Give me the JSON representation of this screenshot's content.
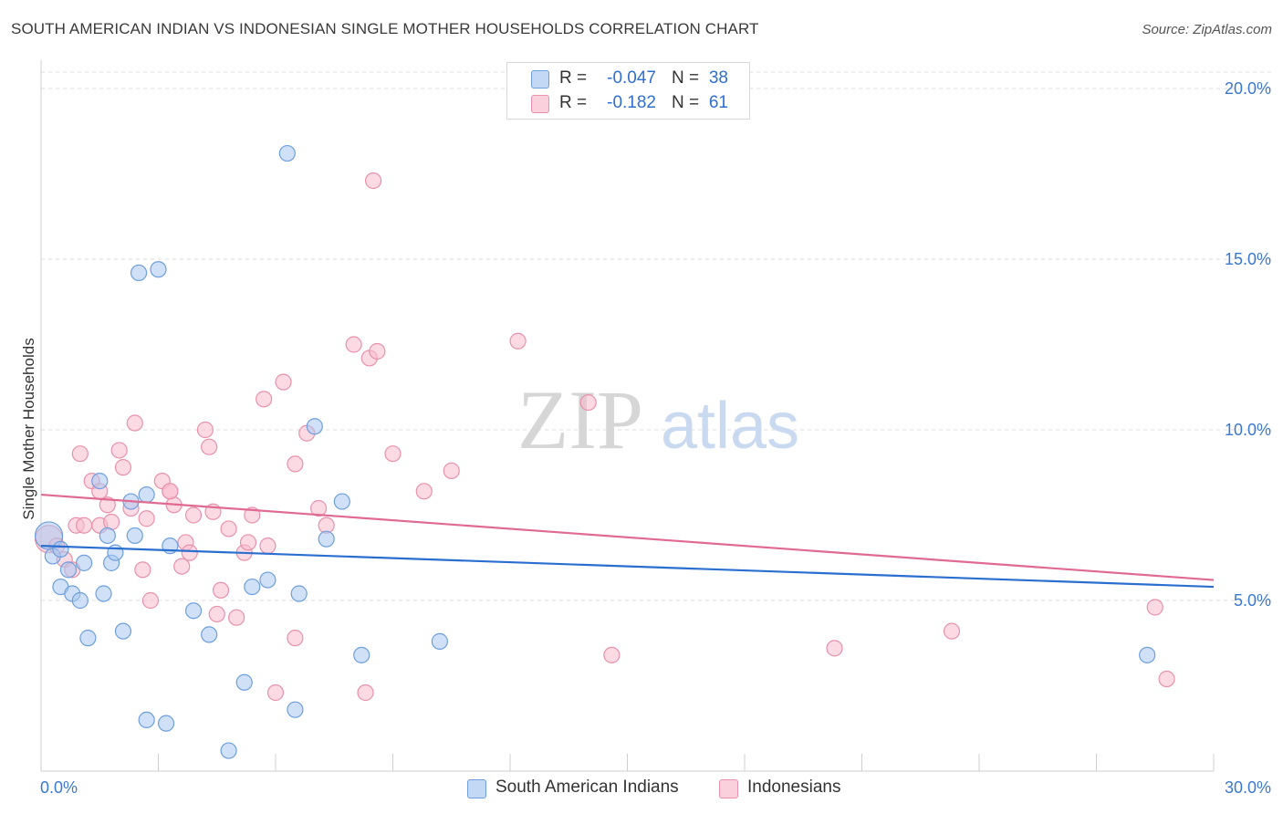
{
  "title": "SOUTH AMERICAN INDIAN VS INDONESIAN SINGLE MOTHER HOUSEHOLDS CORRELATION CHART",
  "source": "Source: ZipAtlas.com",
  "watermark": {
    "zip": "ZIP",
    "atlas": "atlas"
  },
  "legend_top": {
    "rows": [
      {
        "r_label": "R =",
        "r_value": "-0.047",
        "n_label": "N =",
        "n_value": "38"
      },
      {
        "r_label": "R =",
        "r_value": "-0.182",
        "n_label": "N =",
        "n_value": "61"
      }
    ]
  },
  "chart_data": {
    "type": "scatter",
    "title": "SOUTH AMERICAN INDIAN VS INDONESIAN SINGLE MOTHER HOUSEHOLDS CORRELATION CHART",
    "xlabel": "",
    "ylabel": "Single Mother Households",
    "xlim": [
      0,
      30
    ],
    "ylim": [
      0,
      20
    ],
    "x_tick_labels": [
      "0.0%",
      "30.0%"
    ],
    "y_ticks": [
      5,
      10,
      15,
      20
    ],
    "y_tick_labels": [
      "5.0%",
      "10.0%",
      "15.0%",
      "20.0%"
    ],
    "grid": true,
    "legend_position": "bottom",
    "colors": {
      "blue_fill": "#a9c8f0",
      "blue_stroke": "#6e9fdc",
      "blue_line": "#2a6fd0",
      "pink_fill": "#f7bccd",
      "pink_stroke": "#e891ac",
      "pink_line": "#e06a92",
      "axis_label": "#3b78d0"
    },
    "series": [
      {
        "name": "South American Indians",
        "r": -0.047,
        "n": 38,
        "trend": {
          "x": [
            0,
            30
          ],
          "y": [
            6.6,
            5.4
          ]
        },
        "points": [
          [
            0.2,
            6.9
          ],
          [
            0.3,
            6.3
          ],
          [
            0.5,
            6.5
          ],
          [
            0.5,
            5.4
          ],
          [
            0.7,
            5.9
          ],
          [
            0.8,
            5.2
          ],
          [
            1.0,
            5.0
          ],
          [
            1.1,
            6.1
          ],
          [
            1.2,
            3.9
          ],
          [
            1.5,
            8.5
          ],
          [
            1.6,
            5.2
          ],
          [
            1.8,
            6.1
          ],
          [
            1.9,
            6.4
          ],
          [
            2.1,
            4.1
          ],
          [
            2.3,
            7.9
          ],
          [
            2.4,
            6.9
          ],
          [
            2.5,
            14.6
          ],
          [
            2.7,
            8.1
          ],
          [
            2.7,
            1.5
          ],
          [
            3.0,
            14.7
          ],
          [
            3.2,
            1.4
          ],
          [
            3.3,
            6.6
          ],
          [
            3.9,
            4.7
          ],
          [
            4.3,
            4.0
          ],
          [
            4.8,
            0.6
          ],
          [
            5.2,
            2.6
          ],
          [
            5.4,
            5.4
          ],
          [
            5.8,
            5.6
          ],
          [
            6.3,
            18.1
          ],
          [
            6.5,
            1.8
          ],
          [
            6.6,
            5.2
          ],
          [
            7.0,
            10.1
          ],
          [
            7.3,
            6.8
          ],
          [
            7.7,
            7.9
          ],
          [
            8.2,
            3.4
          ],
          [
            10.2,
            3.8
          ],
          [
            28.3,
            3.4
          ],
          [
            1.7,
            6.9
          ]
        ]
      },
      {
        "name": "Indonesians",
        "r": -0.182,
        "n": 61,
        "trend": {
          "x": [
            0,
            30
          ],
          "y": [
            8.1,
            5.6
          ]
        },
        "points": [
          [
            0.2,
            6.8
          ],
          [
            0.4,
            6.6
          ],
          [
            0.6,
            6.2
          ],
          [
            0.8,
            5.9
          ],
          [
            0.9,
            7.2
          ],
          [
            1.0,
            9.3
          ],
          [
            1.1,
            7.2
          ],
          [
            1.3,
            8.5
          ],
          [
            1.5,
            8.2
          ],
          [
            1.5,
            7.2
          ],
          [
            1.7,
            7.8
          ],
          [
            1.8,
            7.3
          ],
          [
            2.0,
            9.4
          ],
          [
            2.1,
            8.9
          ],
          [
            2.3,
            7.7
          ],
          [
            2.4,
            10.2
          ],
          [
            2.6,
            5.9
          ],
          [
            2.7,
            7.4
          ],
          [
            2.8,
            5.0
          ],
          [
            3.1,
            8.5
          ],
          [
            3.3,
            8.2
          ],
          [
            3.4,
            7.8
          ],
          [
            3.6,
            6.0
          ],
          [
            3.7,
            6.7
          ],
          [
            3.8,
            6.4
          ],
          [
            3.9,
            7.5
          ],
          [
            4.2,
            10.0
          ],
          [
            4.3,
            9.5
          ],
          [
            4.4,
            7.6
          ],
          [
            4.5,
            4.6
          ],
          [
            4.6,
            5.3
          ],
          [
            4.8,
            7.1
          ],
          [
            5.0,
            4.5
          ],
          [
            5.2,
            6.4
          ],
          [
            5.3,
            6.7
          ],
          [
            5.4,
            7.5
          ],
          [
            5.7,
            10.9
          ],
          [
            5.8,
            6.6
          ],
          [
            6.0,
            2.3
          ],
          [
            6.2,
            11.4
          ],
          [
            6.5,
            9.0
          ],
          [
            6.5,
            3.9
          ],
          [
            6.8,
            9.9
          ],
          [
            7.1,
            7.7
          ],
          [
            7.3,
            7.2
          ],
          [
            8.0,
            12.5
          ],
          [
            8.3,
            2.3
          ],
          [
            8.5,
            17.3
          ],
          [
            8.4,
            12.1
          ],
          [
            8.6,
            12.3
          ],
          [
            9.0,
            9.3
          ],
          [
            9.8,
            8.2
          ],
          [
            10.5,
            8.8
          ],
          [
            12.2,
            12.6
          ],
          [
            14.0,
            10.8
          ],
          [
            14.6,
            3.4
          ],
          [
            20.3,
            3.6
          ],
          [
            23.3,
            4.1
          ],
          [
            28.5,
            4.8
          ],
          [
            28.8,
            2.7
          ],
          [
            3.3,
            8.2
          ]
        ]
      }
    ]
  }
}
